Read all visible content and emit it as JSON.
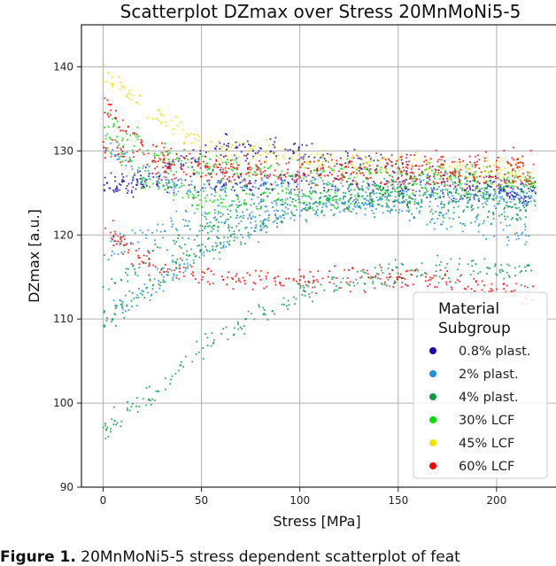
{
  "chart_data": {
    "type": "scatter",
    "title": "Scatterplot DZmax over Stress 20MnMoNi5-5",
    "xlabel": "Stress [MPa]",
    "ylabel": "DZmax [a.u.]",
    "xlim": [
      -11,
      232
    ],
    "ylim": [
      90,
      145
    ],
    "xticks": [
      0,
      50,
      100,
      150,
      200
    ],
    "yticks": [
      90,
      100,
      110,
      120,
      130,
      140
    ],
    "grid": true,
    "legend": {
      "title": "Material\nSubgroup",
      "title_lines": [
        "Material",
        "Subgroup"
      ],
      "placement": "lower-right"
    },
    "series": [
      {
        "name": "0.8% plast.",
        "color": "#1a0aa8",
        "trend_bands": [
          [
            [
              0,
              125
            ],
            [
              30,
              128
            ],
            [
              60,
              130.5
            ],
            [
              100,
              130
            ],
            [
              150,
              128
            ],
            [
              220,
              124.5
            ]
          ],
          [
            [
              0,
              126
            ],
            [
              50,
              126
            ],
            [
              100,
              126
            ],
            [
              150,
              125.5
            ],
            [
              220,
              125
            ]
          ]
        ]
      },
      {
        "name": "2% plast.",
        "color": "#1e90e0",
        "trend_bands": [
          [
            [
              0,
              117.5
            ],
            [
              20,
              120
            ],
            [
              50,
              122
            ],
            [
              100,
              124
            ],
            [
              150,
              123
            ],
            [
              200,
              120.5
            ],
            [
              220,
              119.5
            ]
          ],
          [
            [
              0,
              110
            ],
            [
              20,
              113
            ],
            [
              50,
              118
            ],
            [
              100,
              123
            ],
            [
              150,
              125
            ],
            [
              220,
              124
            ]
          ],
          [
            [
              0,
              131
            ],
            [
              20,
              127
            ],
            [
              50,
              125.5
            ],
            [
              100,
              126
            ],
            [
              220,
              125
            ]
          ]
        ]
      },
      {
        "name": "4% plast.",
        "color": "#0c9a48",
        "trend_bands": [
          [
            [
              0,
              97
            ],
            [
              25,
              101
            ],
            [
              50,
              106.5
            ],
            [
              75,
              110
            ],
            [
              100,
              113
            ],
            [
              150,
              115.5
            ],
            [
              180,
              116
            ],
            [
              220,
              115.5
            ]
          ],
          [
            [
              0,
              110
            ],
            [
              25,
              114
            ],
            [
              50,
              118
            ],
            [
              100,
              123
            ],
            [
              150,
              124
            ],
            [
              220,
              122
            ]
          ],
          [
            [
              0,
              114
            ],
            [
              50,
              121
            ],
            [
              100,
              124.5
            ],
            [
              150,
              125
            ],
            [
              220,
              123.5
            ]
          ]
        ]
      },
      {
        "name": "30% LCF",
        "color": "#00e000",
        "trend_bands": [
          [
            [
              0,
              132
            ],
            [
              20,
              127
            ],
            [
              50,
              124
            ],
            [
              100,
              124.5
            ],
            [
              150,
              125.5
            ],
            [
              220,
              126
            ]
          ],
          [
            [
              0,
              134
            ],
            [
              30,
              129
            ],
            [
              60,
              128
            ],
            [
              120,
              127.5
            ],
            [
              220,
              127
            ]
          ]
        ]
      },
      {
        "name": "45% LCF",
        "color": "#f2e000",
        "trend_bands": [
          [
            [
              0,
              139
            ],
            [
              25,
              134.5
            ],
            [
              50,
              131
            ],
            [
              100,
              129
            ],
            [
              150,
              128
            ],
            [
              220,
              127.5
            ]
          ]
        ]
      },
      {
        "name": "60% LCF",
        "color": "#ff0000",
        "trend_bands": [
          [
            [
              0,
              121
            ],
            [
              20,
              117
            ],
            [
              50,
              115
            ],
            [
              100,
              114.5
            ],
            [
              150,
              115
            ],
            [
              220,
              113
            ]
          ],
          [
            [
              0,
              136
            ],
            [
              20,
              131
            ],
            [
              50,
              128
            ],
            [
              100,
              128
            ],
            [
              150,
              128.5
            ],
            [
              220,
              128.5
            ]
          ],
          [
            [
              0,
              130.5
            ],
            [
              30,
              128
            ],
            [
              100,
              127
            ],
            [
              220,
              126.5
            ]
          ]
        ]
      }
    ]
  },
  "caption": {
    "label": "Figure 1.",
    "text": "20MnMoNi5-5 stress dependent scatterplot of feat"
  }
}
